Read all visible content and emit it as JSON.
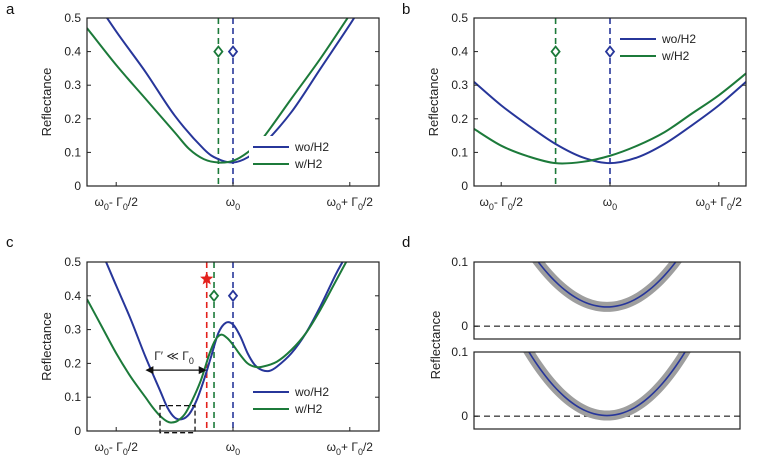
{
  "colors": {
    "blue": "#27369a",
    "green": "#1c7a3a",
    "red": "#e3211c",
    "band": "#9e9e9e",
    "dash": "#444444"
  },
  "chart_data": [
    {
      "panel": "a",
      "type": "line",
      "ylabel": "Reflectance",
      "ylim": [
        0,
        0.5
      ],
      "xlim": [
        -1,
        1
      ],
      "yticks": [
        0,
        0.1,
        0.2,
        0.3,
        0.4,
        0.5
      ],
      "yticklabels": [
        "0",
        "0.1",
        "0.2",
        "0.3",
        "0.4",
        "0.5"
      ],
      "xtick_values": [
        -0.8,
        0,
        0.8
      ],
      "xticks": [
        {
          "main": "ω",
          "sub": "0",
          "mid": "- Γ",
          "sub2": "0",
          "tail": "/2"
        },
        {
          "main": "ω",
          "sub": "0"
        },
        {
          "main": "ω",
          "sub": "0",
          "mid": "+ Γ",
          "sub2": "0",
          "tail": "/2"
        }
      ],
      "series": [
        {
          "name": "wo/H2",
          "color": "blue",
          "points": [
            [
              -1,
              0.59
            ],
            [
              -0.8,
              0.46
            ],
            [
              -0.6,
              0.34
            ],
            [
              -0.4,
              0.21
            ],
            [
              -0.2,
              0.11
            ],
            [
              -0.1,
              0.08
            ],
            [
              0,
              0.07
            ],
            [
              0.1,
              0.085
            ],
            [
              0.2,
              0.12
            ],
            [
              0.4,
              0.22
            ],
            [
              0.6,
              0.35
            ],
            [
              0.8,
              0.48
            ],
            [
              0.9,
              0.55
            ]
          ]
        },
        {
          "name": "w/H2",
          "color": "green",
          "points": [
            [
              -1,
              0.47
            ],
            [
              -0.8,
              0.36
            ],
            [
              -0.6,
              0.26
            ],
            [
              -0.4,
              0.16
            ],
            [
              -0.3,
              0.11
            ],
            [
              -0.2,
              0.08
            ],
            [
              -0.1,
              0.07
            ],
            [
              0,
              0.075
            ],
            [
              0.1,
              0.1
            ],
            [
              0.2,
              0.14
            ],
            [
              0.4,
              0.26
            ],
            [
              0.6,
              0.38
            ],
            [
              0.8,
              0.51
            ]
          ]
        }
      ],
      "vlines": [
        {
          "x": -0.1,
          "color": "green"
        },
        {
          "x": 0,
          "color": "blue"
        }
      ],
      "markers": [
        {
          "x": -0.1,
          "y": 0.4,
          "color": "green"
        },
        {
          "x": 0,
          "y": 0.4,
          "color": "blue"
        }
      ],
      "legend": "bottom-right"
    },
    {
      "panel": "b",
      "type": "line",
      "ylabel": "Reflectance",
      "ylim": [
        0,
        0.5
      ],
      "xlim": [
        -1,
        1
      ],
      "yticks": [
        0,
        0.1,
        0.2,
        0.3,
        0.4,
        0.5
      ],
      "yticklabels": [
        "0",
        "0.1",
        "0.2",
        "0.3",
        "0.4",
        "0.5"
      ],
      "xtick_values": [
        -0.8,
        0,
        0.8
      ],
      "xticks": [
        {
          "main": "ω",
          "sub": "0",
          "mid": "- Γ",
          "sub2": "0",
          "tail": "/2"
        },
        {
          "main": "ω",
          "sub": "0"
        },
        {
          "main": "ω",
          "sub": "0",
          "mid": "+ Γ",
          "sub2": "0",
          "tail": "/2"
        }
      ],
      "series": [
        {
          "name": "wo/H2",
          "color": "blue",
          "points": [
            [
              -1,
              0.31
            ],
            [
              -0.8,
              0.24
            ],
            [
              -0.6,
              0.18
            ],
            [
              -0.4,
              0.125
            ],
            [
              -0.2,
              0.085
            ],
            [
              0,
              0.068
            ],
            [
              0.2,
              0.085
            ],
            [
              0.4,
              0.125
            ],
            [
              0.6,
              0.18
            ],
            [
              0.8,
              0.24
            ],
            [
              1,
              0.31
            ]
          ]
        },
        {
          "name": "w/H2",
          "color": "green",
          "points": [
            [
              -1,
              0.17
            ],
            [
              -0.8,
              0.12
            ],
            [
              -0.6,
              0.088
            ],
            [
              -0.4,
              0.068
            ],
            [
              -0.2,
              0.072
            ],
            [
              0,
              0.09
            ],
            [
              0.2,
              0.12
            ],
            [
              0.4,
              0.16
            ],
            [
              0.6,
              0.215
            ],
            [
              0.8,
              0.27
            ],
            [
              1,
              0.335
            ]
          ]
        }
      ],
      "vlines": [
        {
          "x": -0.4,
          "color": "green"
        },
        {
          "x": 0,
          "color": "blue"
        }
      ],
      "markers": [
        {
          "x": -0.4,
          "y": 0.4,
          "color": "green"
        },
        {
          "x": 0,
          "y": 0.4,
          "color": "blue"
        }
      ],
      "legend": "top-right"
    },
    {
      "panel": "c",
      "type": "line",
      "ylabel": "Reflectance",
      "ylim": [
        0,
        0.5
      ],
      "xlim": [
        -1,
        1
      ],
      "yticks": [
        0,
        0.1,
        0.2,
        0.3,
        0.4,
        0.5
      ],
      "yticklabels": [
        "0",
        "0.1",
        "0.2",
        "0.3",
        "0.4",
        "0.5"
      ],
      "xtick_values": [
        -0.8,
        0,
        0.8
      ],
      "xticks": [
        {
          "main": "ω",
          "sub": "0",
          "mid": "- Γ",
          "sub2": "0",
          "tail": "/2"
        },
        {
          "main": "ω",
          "sub": "0"
        },
        {
          "main": "ω",
          "sub": "0",
          "mid": "+ Γ",
          "sub2": "0",
          "tail": "/2"
        }
      ],
      "series": [
        {
          "name": "wo/H2",
          "color": "blue",
          "points": [
            [
              -1,
              0.62
            ],
            [
              -0.9,
              0.53
            ],
            [
              -0.8,
              0.43
            ],
            [
              -0.7,
              0.33
            ],
            [
              -0.6,
              0.22
            ],
            [
              -0.5,
              0.12
            ],
            [
              -0.45,
              0.07
            ],
            [
              -0.4,
              0.04
            ],
            [
              -0.35,
              0.035
            ],
            [
              -0.3,
              0.05
            ],
            [
              -0.25,
              0.09
            ],
            [
              -0.2,
              0.15
            ],
            [
              -0.15,
              0.22
            ],
            [
              -0.1,
              0.29
            ],
            [
              -0.05,
              0.32
            ],
            [
              0,
              0.315
            ],
            [
              0.05,
              0.28
            ],
            [
              0.1,
              0.23
            ],
            [
              0.15,
              0.195
            ],
            [
              0.2,
              0.18
            ],
            [
              0.25,
              0.178
            ],
            [
              0.3,
              0.19
            ],
            [
              0.4,
              0.23
            ],
            [
              0.5,
              0.29
            ],
            [
              0.6,
              0.37
            ],
            [
              0.7,
              0.46
            ],
            [
              0.75,
              0.5
            ]
          ]
        },
        {
          "name": "w/H2",
          "color": "green",
          "points": [
            [
              -1,
              0.39
            ],
            [
              -0.9,
              0.31
            ],
            [
              -0.8,
              0.23
            ],
            [
              -0.7,
              0.16
            ],
            [
              -0.6,
              0.1
            ],
            [
              -0.55,
              0.07
            ],
            [
              -0.5,
              0.045
            ],
            [
              -0.45,
              0.028
            ],
            [
              -0.42,
              0.025
            ],
            [
              -0.38,
              0.03
            ],
            [
              -0.33,
              0.05
            ],
            [
              -0.28,
              0.09
            ],
            [
              -0.22,
              0.15
            ],
            [
              -0.16,
              0.23
            ],
            [
              -0.12,
              0.27
            ],
            [
              -0.08,
              0.285
            ],
            [
              -0.04,
              0.275
            ],
            [
              0,
              0.255
            ],
            [
              0.05,
              0.225
            ],
            [
              0.1,
              0.2
            ],
            [
              0.15,
              0.19
            ],
            [
              0.2,
              0.19
            ],
            [
              0.3,
              0.205
            ],
            [
              0.4,
              0.24
            ],
            [
              0.5,
              0.29
            ],
            [
              0.6,
              0.36
            ],
            [
              0.7,
              0.44
            ],
            [
              0.8,
              0.52
            ]
          ]
        }
      ],
      "vlines": [
        {
          "x": -0.18,
          "color": "red"
        },
        {
          "x": -0.13,
          "color": "green"
        },
        {
          "x": 0,
          "color": "blue"
        }
      ],
      "markers": [
        {
          "x": -0.13,
          "y": 0.4,
          "color": "green"
        },
        {
          "x": 0,
          "y": 0.4,
          "color": "blue"
        }
      ],
      "star": {
        "x": -0.18,
        "y": 0.45,
        "color": "red"
      },
      "arrow": {
        "x1": -0.6,
        "x2": -0.18,
        "y": 0.18
      },
      "annotation": {
        "text": "Γ′ ≪ Γ",
        "sub": "0"
      },
      "box": {
        "x0": -0.5,
        "x1": -0.26,
        "y0": -0.005,
        "y1": 0.075
      },
      "legend": "bottom-right"
    },
    {
      "panel": "d",
      "type": "line",
      "ylabel": "Reflectance",
      "subplots": [
        {
          "ylim": [
            -0.02,
            0.1
          ],
          "yticks": [
            0,
            0.1
          ],
          "yticklabels": [
            "0",
            "0.1"
          ],
          "min_x": 0.5,
          "min_y": 0.03,
          "k": 1.05,
          "baseline": 0
        },
        {
          "ylim": [
            -0.02,
            0.1
          ],
          "yticks": [
            0,
            0.1
          ],
          "yticklabels": [
            "0",
            "0.1"
          ],
          "min_x": 0.5,
          "min_y": 0.001,
          "k": 1.15,
          "baseline": 0
        }
      ]
    }
  ]
}
